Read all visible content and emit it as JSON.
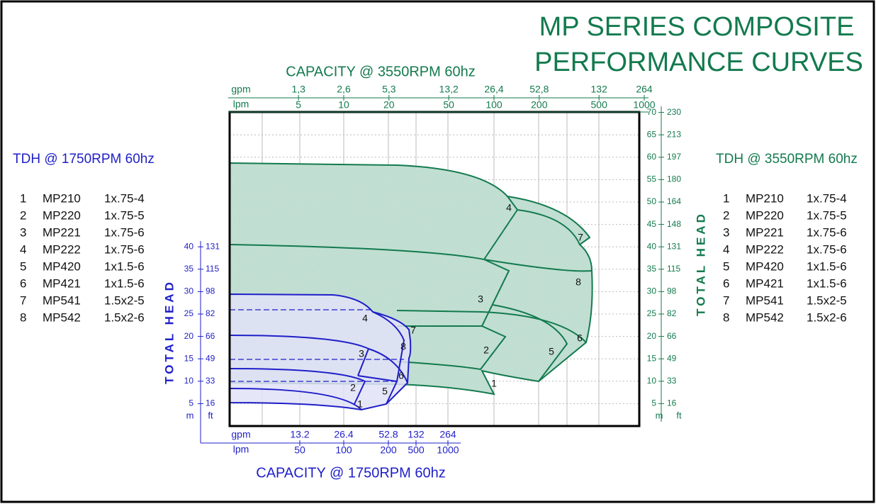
{
  "title": [
    "MP  SERIES COMPOSITE",
    "PERFORMANCE CURVES"
  ],
  "top_axis": {
    "title": "CAPACITY @ 3550RPM  60hz",
    "gpm_label": "gpm",
    "lpm_label": "lpm",
    "gpm": [
      "1,3",
      "2,6",
      "5,3",
      "13,2",
      "26,4",
      "52,8",
      "132",
      "264"
    ],
    "lpm": [
      5,
      10,
      20,
      50,
      100,
      200,
      500,
      1000
    ]
  },
  "bottom_axis": {
    "title": "CAPACITY  @ 1750RPM  60hz",
    "gpm_label": "gpm",
    "lpm_label": "lpm",
    "gpm": [
      13.2,
      26.4,
      52.8,
      132,
      264
    ],
    "lpm": [
      50,
      100,
      200,
      500,
      1000
    ]
  },
  "left_axis": {
    "title": "TOTAL HEAD",
    "m_label": "m",
    "ft_label": "ft",
    "m": [
      40,
      35,
      30,
      25,
      20,
      15,
      10,
      5
    ],
    "ft": [
      131,
      115,
      98,
      82,
      66,
      49,
      33,
      16
    ]
  },
  "right_axis": {
    "title": "TOTAL HEAD",
    "m_label": "m",
    "ft_label": "ft",
    "m": [
      70,
      65,
      60,
      55,
      50,
      45,
      40,
      35,
      30,
      25,
      20,
      15,
      10,
      5
    ],
    "ft": [
      230,
      213,
      197,
      180,
      164,
      148,
      131,
      115,
      98,
      82,
      66,
      49,
      33,
      16
    ]
  },
  "legend_1750": {
    "title": "TDH @ 1750RPM 60hz",
    "rows": [
      [
        1,
        "MP210",
        "1x.75-4"
      ],
      [
        2,
        "MP220",
        "1x.75-5"
      ],
      [
        3,
        "MP221",
        "1x.75-6"
      ],
      [
        4,
        "MP222",
        "1x.75-6"
      ],
      [
        5,
        "MP420",
        "1x1.5-6"
      ],
      [
        6,
        "MP421",
        "1x1.5-6"
      ],
      [
        7,
        "MP541",
        "1.5x2-5"
      ],
      [
        8,
        "MP542",
        "1.5x2-6"
      ]
    ]
  },
  "legend_3550": {
    "title": "TDH @ 3550RPM 60hz",
    "rows": [
      [
        1,
        "MP210",
        "1x.75-4"
      ],
      [
        2,
        "MP220",
        "1x.75-5"
      ],
      [
        3,
        "MP221",
        "1x.75-6"
      ],
      [
        4,
        "MP222",
        "1x.75-6"
      ],
      [
        5,
        "MP420",
        "1x1.5-6"
      ],
      [
        6,
        "MP421",
        "1x1.5-6"
      ],
      [
        7,
        "MP541",
        "1.5x2-5"
      ],
      [
        8,
        "MP542",
        "1.5x2-6"
      ]
    ]
  },
  "curve_labels_1750": [
    4,
    7,
    8,
    3,
    6,
    2,
    5,
    1
  ],
  "curve_labels_3550": [
    4,
    7,
    8,
    3,
    2,
    5,
    6,
    1
  ]
}
